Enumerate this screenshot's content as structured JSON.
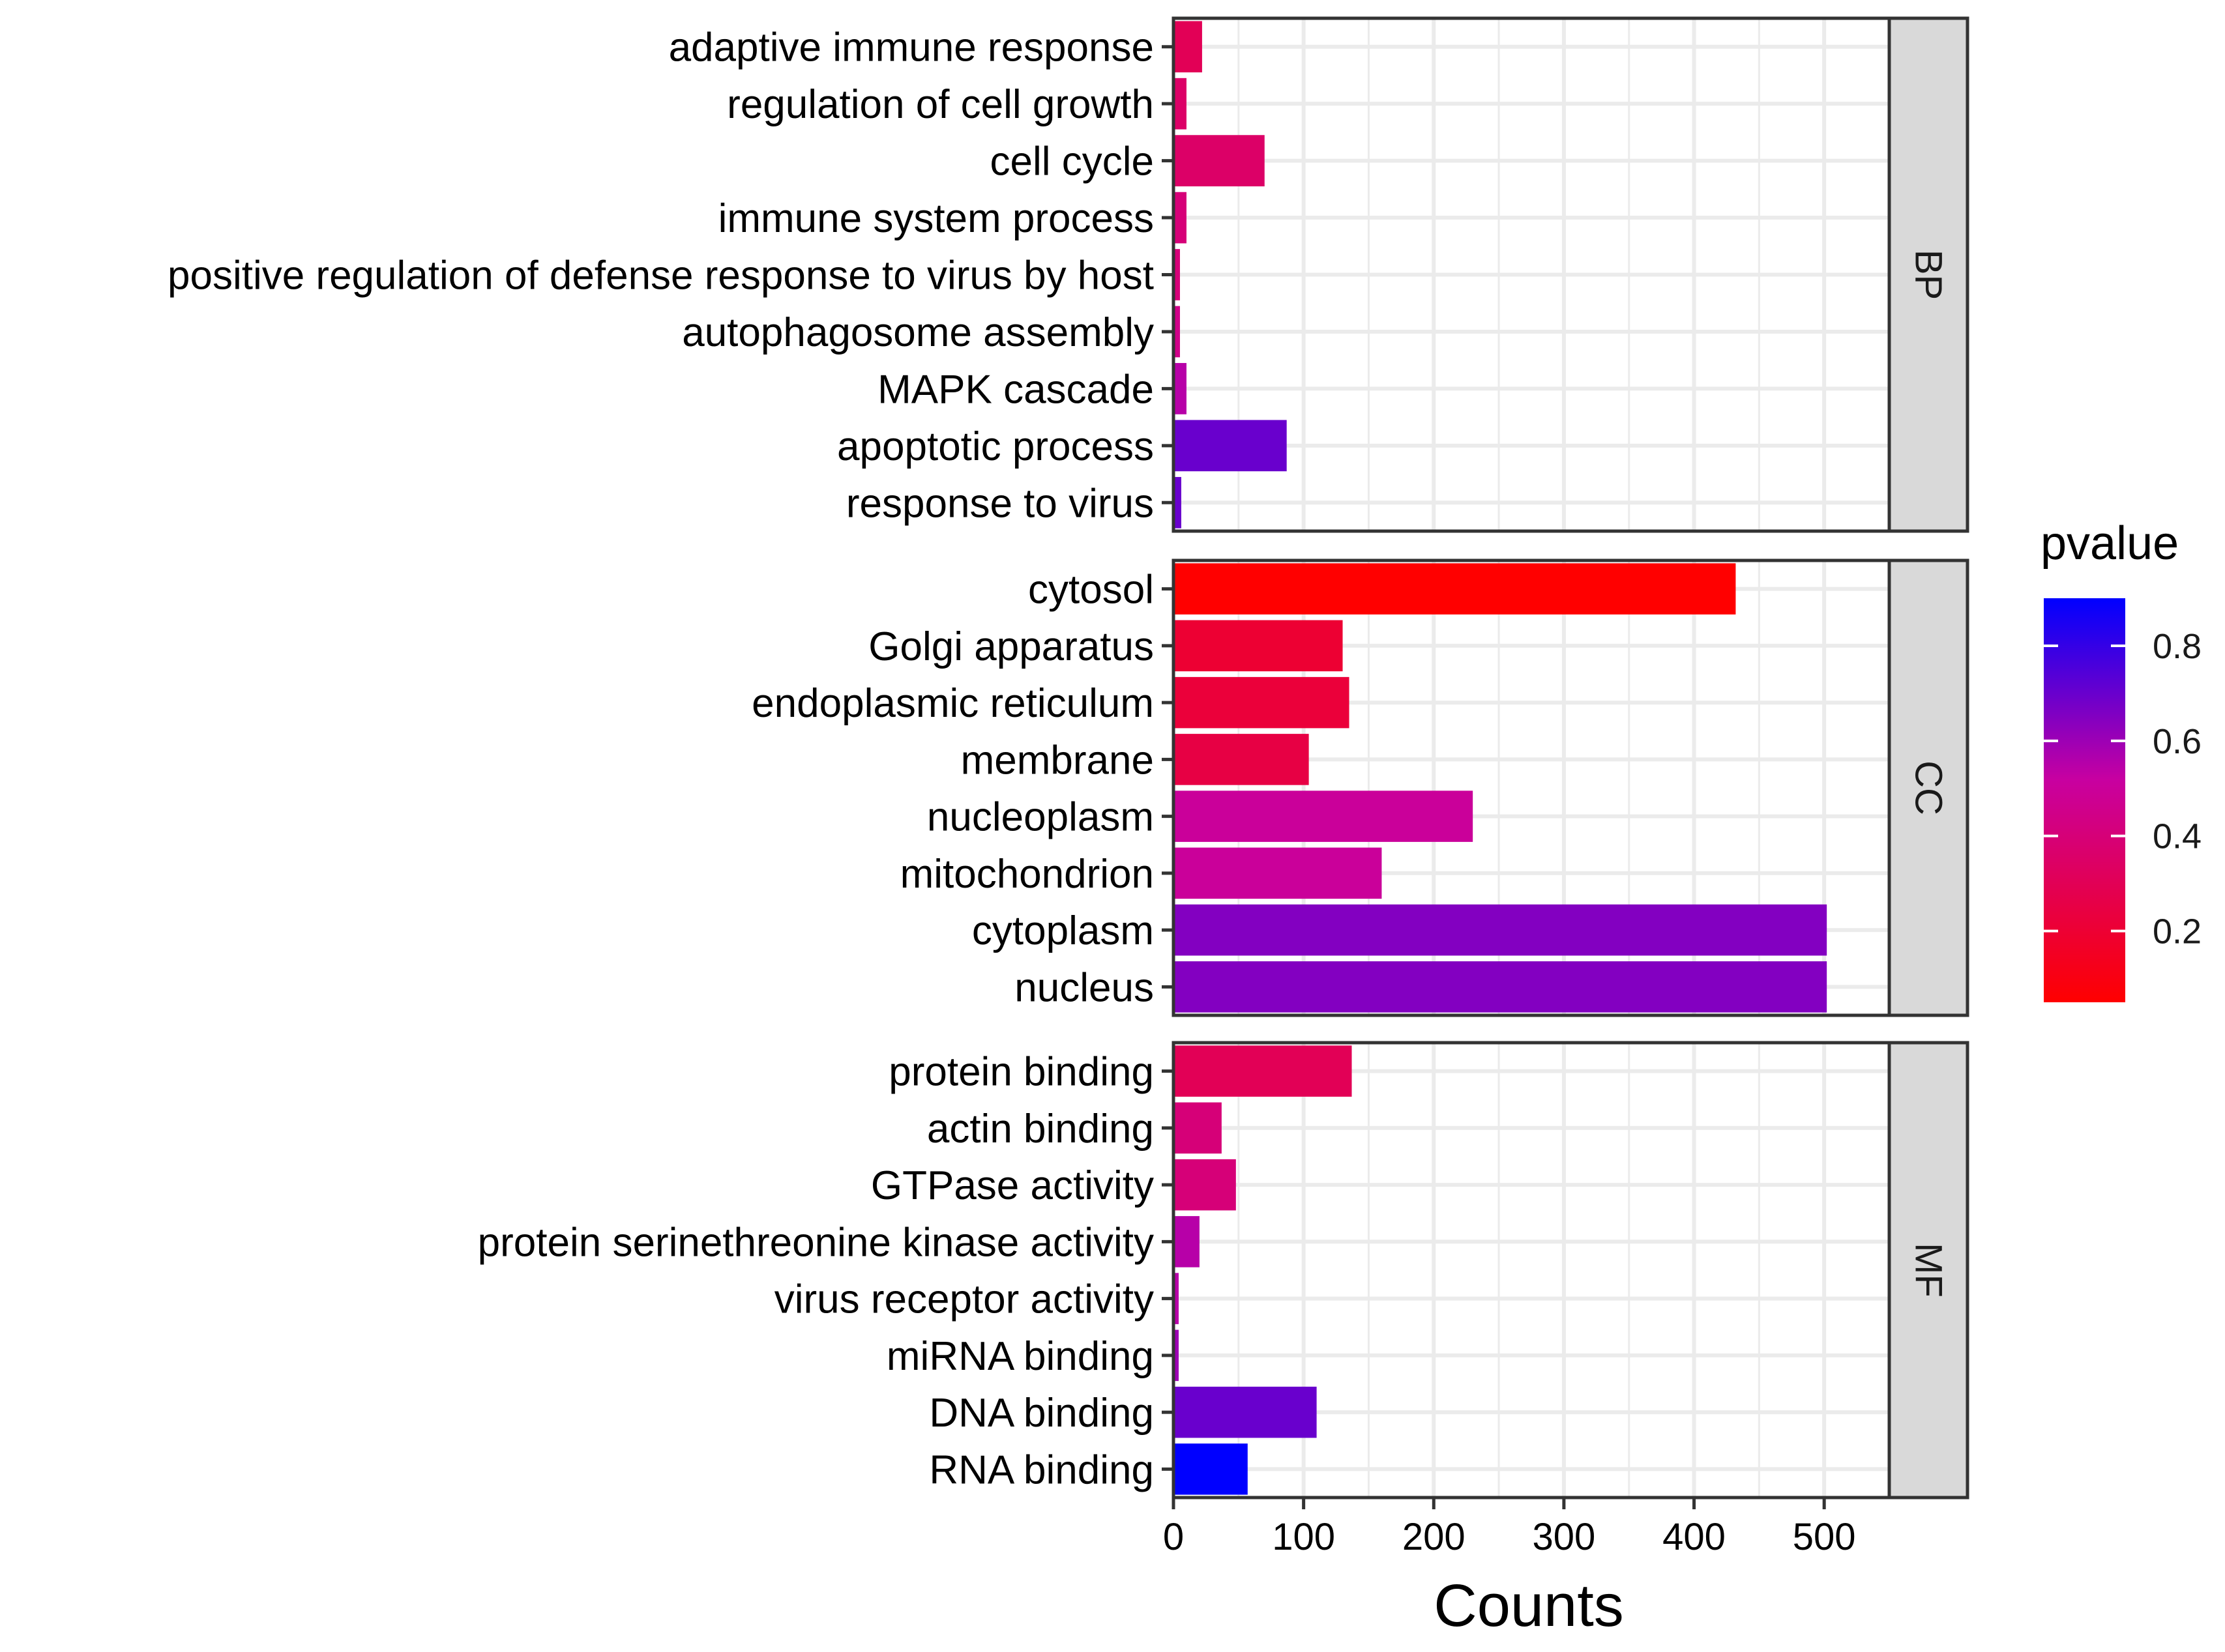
{
  "chart_data": {
    "type": "bar",
    "orientation": "horizontal",
    "xlabel": "Counts",
    "xlim": [
      0,
      550
    ],
    "xticks": [
      0,
      100,
      200,
      300,
      400,
      500
    ],
    "grid": true,
    "legend": {
      "title": "pvalue",
      "placement": "right",
      "range": [
        0.05,
        0.9
      ],
      "ticks": [
        "0.2",
        "0.4",
        "0.6",
        "0.8"
      ],
      "tick_values": [
        0.2,
        0.4,
        0.6,
        0.8
      ],
      "colors": {
        "low": "#FF0000",
        "mid": "#C800A0",
        "high": "#0000FF"
      }
    },
    "facets": [
      {
        "name": "BP",
        "categories": [
          "adaptive immune response",
          "regulation of cell growth",
          "cell cycle",
          "immune system process",
          "positive regulation of defense response to virus by host",
          "autophagosome assembly",
          "MAPK cascade",
          "apoptotic process",
          "response to virus"
        ],
        "values": [
          22,
          10,
          70,
          10,
          5,
          5,
          10,
          87,
          6
        ],
        "pvalues": [
          0.3,
          0.35,
          0.35,
          0.4,
          0.4,
          0.45,
          0.55,
          0.7,
          0.7
        ]
      },
      {
        "name": "CC",
        "categories": [
          "cytosol",
          "Golgi apparatus",
          "endoplasmic reticulum",
          "membrane",
          "nucleoplasm",
          "mitochondrion",
          "cytoplasm",
          "nucleus"
        ],
        "values": [
          432,
          130,
          135,
          104,
          230,
          160,
          502,
          502
        ],
        "pvalues": [
          0.05,
          0.2,
          0.22,
          0.25,
          0.5,
          0.5,
          0.65,
          0.65
        ]
      },
      {
        "name": "MF",
        "categories": [
          "protein binding",
          "actin binding",
          "GTPase activity",
          "protein serinethreonine kinase activity",
          "virus receptor activity",
          "miRNA binding",
          "DNA binding",
          "RNA binding"
        ],
        "values": [
          137,
          37,
          48,
          20,
          4,
          4,
          110,
          57
        ],
        "pvalues": [
          0.3,
          0.4,
          0.4,
          0.55,
          0.55,
          0.6,
          0.7,
          0.9
        ]
      }
    ]
  }
}
